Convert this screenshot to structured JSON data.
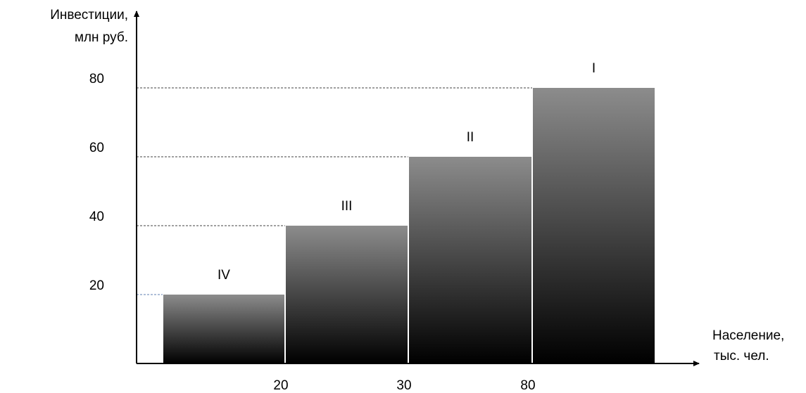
{
  "chart_data": {
    "type": "bar",
    "ylabel": [
      "Инвестиции,",
      "млн руб."
    ],
    "xlabel": [
      "Население,",
      "тыс. чел."
    ],
    "y_ticks": [
      "80",
      "60",
      "40",
      "20"
    ],
    "x_ticks": [
      "20",
      "30",
      "80"
    ],
    "categories": [
      "IV",
      "III",
      "II",
      "I"
    ],
    "values": [
      20,
      40,
      60,
      80
    ],
    "ylim": [
      0,
      80
    ],
    "grid": false,
    "legend": "none",
    "colors": {
      "bar_top": "#8c8c8c",
      "bar_bottom": "#000000",
      "axis": "#000000",
      "guide": "#404040",
      "guide_lowest": "#5f7fb0"
    }
  }
}
